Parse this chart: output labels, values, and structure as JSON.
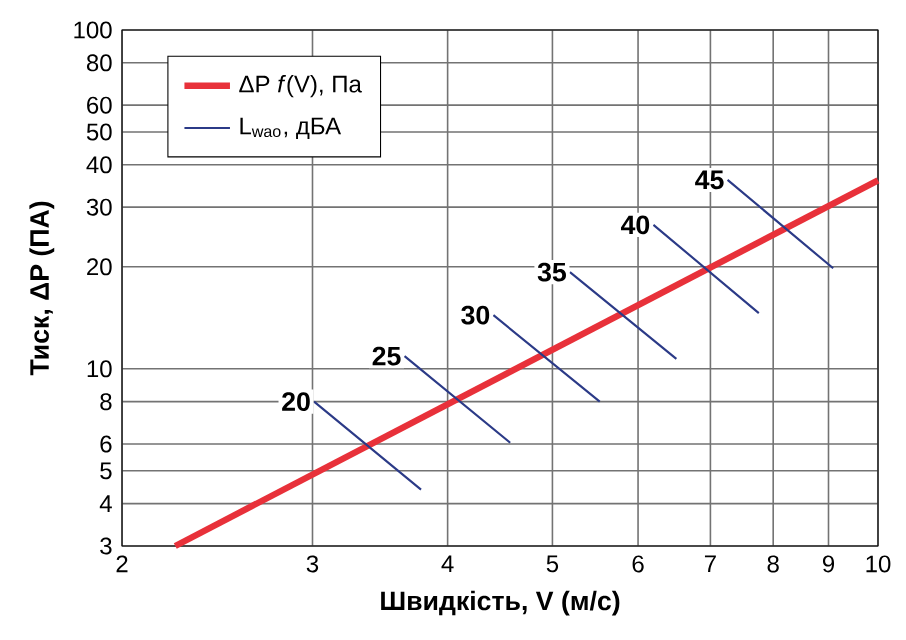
{
  "chart_data": {
    "type": "line",
    "xlabel": "Швидкість, V (м/с)",
    "ylabel": "Тиск, ΔP (ПА)",
    "log": "xy",
    "xlim": [
      2,
      10
    ],
    "ylim": [
      3,
      100
    ],
    "xticks": [
      2,
      3,
      4,
      5,
      6,
      7,
      8,
      9,
      10
    ],
    "yticks": [
      3,
      4,
      5,
      6,
      8,
      10,
      20,
      30,
      40,
      50,
      60,
      80,
      100
    ],
    "grid": true,
    "legend": "top left",
    "marker": "none",
    "line_style": "solid",
    "series": [
      {
        "name": "ΔP *f*(V), Па",
        "color": "#e8313a",
        "x": [
          2.24,
          10
        ],
        "values": [
          3,
          36
        ]
      },
      {
        "name": "L$_{wao}$, дБА",
        "color": "#2b3a87",
        "x": [
          3.01,
          3.78,
          null,
          3.65,
          4.57,
          null,
          4.41,
          5.53,
          null,
          5.19,
          6.51,
          null,
          6.2,
          7.76,
          null,
          7.26,
          9.09
        ],
        "values": [
          8.0,
          4.4,
          null,
          10.9,
          6.05,
          null,
          14.4,
          8.0,
          null,
          19.3,
          10.7,
          null,
          26.6,
          14.6,
          null,
          36.1,
          19.8
        ]
      }
    ],
    "annotations": [
      {
        "text": "20",
        "x": 3.01,
        "y": 8.0
      },
      {
        "text": "25",
        "x": 3.65,
        "y": 10.9
      },
      {
        "text": "30",
        "x": 4.41,
        "y": 14.4
      },
      {
        "text": "35",
        "x": 5.19,
        "y": 19.3
      },
      {
        "text": "40",
        "x": 6.2,
        "y": 26.6
      },
      {
        "text": "45",
        "x": 7.26,
        "y": 36.1
      }
    ]
  }
}
